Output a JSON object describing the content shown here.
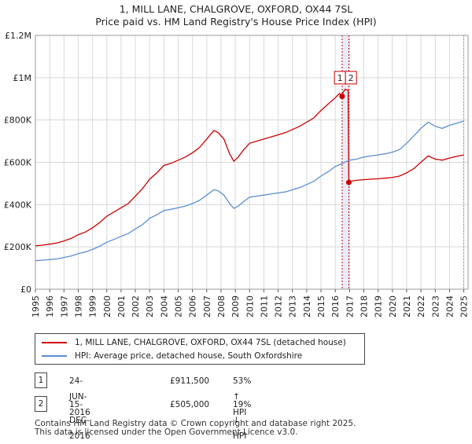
{
  "chart_data": {
    "type": "line",
    "title": "1, MILL LANE, CHALGROVE, OXFORD, OX44 7SL",
    "subtitle": "Price paid vs. HM Land Registry's House Price Index (HPI)",
    "xlabel": "",
    "ylabel": "",
    "xlim": [
      1995,
      2025.3
    ],
    "ylim": [
      0,
      1200000
    ],
    "y_ticks": [
      {
        "value": 0,
        "label": "£0"
      },
      {
        "value": 200000,
        "label": "£200K"
      },
      {
        "value": 400000,
        "label": "£400K"
      },
      {
        "value": 600000,
        "label": "£600K"
      },
      {
        "value": 800000,
        "label": "£800K"
      },
      {
        "value": 1000000,
        "label": "£1M"
      },
      {
        "value": 1200000,
        "label": "£1.2M"
      }
    ],
    "x_ticks": [
      "1995",
      "1996",
      "1997",
      "1998",
      "1999",
      "2000",
      "2001",
      "2002",
      "2003",
      "2004",
      "2005",
      "2006",
      "2007",
      "2008",
      "2009",
      "2010",
      "2011",
      "2012",
      "2013",
      "2014",
      "2015",
      "2016",
      "2017",
      "2018",
      "2019",
      "2020",
      "2021",
      "2022",
      "2023",
      "2024",
      "2025"
    ],
    "grid": true,
    "series": [
      {
        "name": "1, MILL LANE, CHALGROVE, OXFORD, OX44 7SL (detached house)",
        "color": "#cc0000",
        "x": [
          1995.0,
          1995.5,
          1996.0,
          1996.5,
          1997.0,
          1997.5,
          1998.0,
          1998.5,
          1999.0,
          1999.5,
          2000.0,
          2000.5,
          2001.0,
          2001.5,
          2002.0,
          2002.5,
          2003.0,
          2003.5,
          2004.0,
          2004.5,
          2005.0,
          2005.5,
          2006.0,
          2006.5,
          2007.0,
          2007.5,
          2007.8,
          2008.2,
          2008.6,
          2008.9,
          2009.2,
          2009.6,
          2010.0,
          2010.5,
          2011.0,
          2011.5,
          2012.0,
          2012.5,
          2013.0,
          2013.5,
          2014.0,
          2014.5,
          2015.0,
          2015.5,
          2016.0,
          2016.3,
          2016.48,
          2016.5,
          2016.7,
          2016.9,
          2016.95,
          2017.2,
          2017.5,
          2018.0,
          2018.5,
          2019.0,
          2019.5,
          2020.0,
          2020.5,
          2021.0,
          2021.5,
          2022.0,
          2022.5,
          2023.0,
          2023.5,
          2024.0,
          2024.5,
          2025.0
        ],
        "values": [
          205000,
          208000,
          213000,
          218000,
          228000,
          240000,
          258000,
          270000,
          290000,
          315000,
          345000,
          365000,
          385000,
          405000,
          440000,
          475000,
          520000,
          550000,
          585000,
          595000,
          610000,
          625000,
          645000,
          670000,
          710000,
          750000,
          740000,
          710000,
          640000,
          605000,
          625000,
          660000,
          690000,
          700000,
          710000,
          720000,
          730000,
          740000,
          755000,
          770000,
          790000,
          810000,
          845000,
          875000,
          905000,
          925000,
          911500,
          925000,
          945000,
          940000,
          505000,
          512000,
          515000,
          518000,
          520000,
          522000,
          525000,
          528000,
          535000,
          550000,
          570000,
          600000,
          630000,
          615000,
          610000,
          620000,
          628000,
          635000
        ]
      },
      {
        "name": "HPI: Average price, detached house, South Oxfordshire",
        "color": "#5b8fd0",
        "x": [
          1995.0,
          1995.5,
          1996.0,
          1996.5,
          1997.0,
          1997.5,
          1998.0,
          1998.5,
          1999.0,
          1999.5,
          2000.0,
          2000.5,
          2001.0,
          2001.5,
          2002.0,
          2002.5,
          2003.0,
          2003.5,
          2004.0,
          2004.5,
          2005.0,
          2005.5,
          2006.0,
          2006.5,
          2007.0,
          2007.5,
          2007.8,
          2008.2,
          2008.6,
          2008.9,
          2009.2,
          2009.6,
          2010.0,
          2010.5,
          2011.0,
          2011.5,
          2012.0,
          2012.5,
          2013.0,
          2013.5,
          2014.0,
          2014.5,
          2015.0,
          2015.5,
          2016.0,
          2016.5,
          2017.0,
          2017.5,
          2018.0,
          2018.5,
          2019.0,
          2019.5,
          2020.0,
          2020.5,
          2021.0,
          2021.5,
          2022.0,
          2022.5,
          2023.0,
          2023.5,
          2024.0,
          2024.5,
          2025.0
        ],
        "values": [
          135000,
          137000,
          140000,
          143000,
          150000,
          157000,
          168000,
          176000,
          188000,
          203000,
          222000,
          235000,
          250000,
          263000,
          285000,
          305000,
          335000,
          352000,
          372000,
          378000,
          385000,
          393000,
          405000,
          420000,
          445000,
          470000,
          465000,
          445000,
          405000,
          382000,
          392000,
          415000,
          435000,
          440000,
          445000,
          450000,
          455000,
          460000,
          470000,
          480000,
          495000,
          510000,
          535000,
          555000,
          580000,
          595000,
          610000,
          615000,
          625000,
          630000,
          635000,
          640000,
          648000,
          660000,
          690000,
          725000,
          760000,
          790000,
          770000,
          760000,
          775000,
          785000,
          795000
        ]
      }
    ],
    "annotations": [
      {
        "label": "1",
        "x": 2016.48,
        "value": 911500
      },
      {
        "label": "2",
        "x": 2016.95,
        "value": 505000
      }
    ],
    "legend_position": "below"
  },
  "legend": [
    {
      "label": "1, MILL LANE, CHALGROVE, OXFORD, OX44 7SL (detached house)",
      "color": "#cc0000"
    },
    {
      "label": "HPI: Average price, detached house, South Oxfordshire",
      "color": "#5b8fd0"
    }
  ],
  "transactions": [
    {
      "num": "1",
      "date": "24-JUN-2016",
      "price": "£911,500",
      "hpi": "53% ↑ HPI"
    },
    {
      "num": "2",
      "date": "15-DEC-2016",
      "price": "£505,000",
      "hpi": "19% ↓ HPI"
    }
  ],
  "footer": {
    "line1": "Contains HM Land Registry data © Crown copyright and database right 2025.",
    "line2": "This data is licensed under the Open Government Licence v3.0."
  }
}
